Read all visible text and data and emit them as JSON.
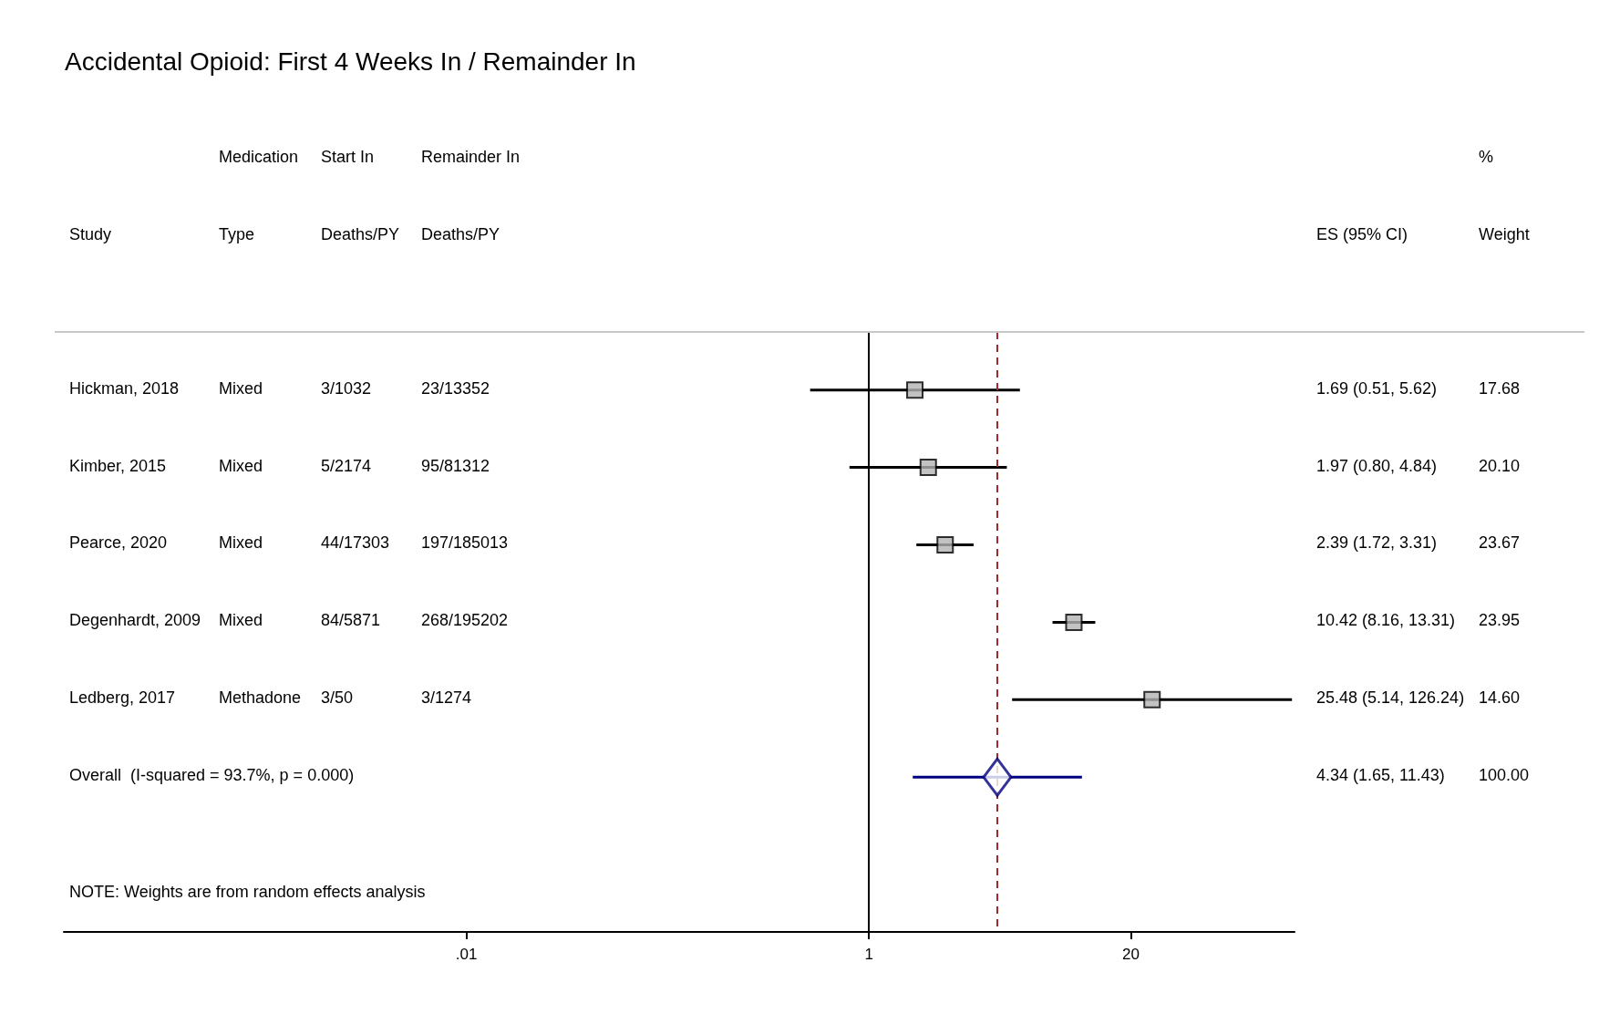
{
  "chart_data": {
    "type": "scatter",
    "title": "Accidental Opioid: First 4 Weeks In / Remainder In",
    "orientation": "horizontal",
    "log": "x",
    "categories": [
      "Hickman, 2018",
      "Kimber, 2015",
      "Pearce, 2020",
      "Degenhardt, 2009",
      "Ledberg, 2017",
      "Overall  (I-squared = 93.7%, p = 0.000)"
    ],
    "series": [
      {
        "color": "#b3b3b3",
        "marker": "square",
        "values": [
          1.69,
          1.97,
          2.39,
          10.42,
          25.48,
          null
        ],
        "errors": [
          [
            0.51,
            5.62
          ],
          [
            0.8,
            4.84
          ],
          [
            1.72,
            3.31
          ],
          [
            8.16,
            13.31
          ],
          [
            5.14,
            126.24
          ],
          null
        ]
      },
      {
        "color": "#000080",
        "marker": "diamond",
        "values": [
          null,
          null,
          null,
          null,
          null,
          4.34
        ],
        "errors": [
          null,
          null,
          null,
          null,
          null,
          [
            1.65,
            11.43
          ]
        ]
      }
    ],
    "xlim": [
      0.0001,
      130
    ],
    "xticks": [
      {
        "value": 0.01,
        "label": ".01"
      },
      1,
      20
    ],
    "ref_lines": [
      {
        "axis": "x",
        "value": 1,
        "color": "#000000",
        "line_style": "solid"
      },
      {
        "axis": "x",
        "value": 4.34,
        "color": "#a0292f",
        "line_style": "dashed"
      }
    ],
    "grid": false,
    "annotations": [
      "Medication",
      "Start In",
      "Remainder In",
      "%",
      "Study",
      "Type",
      "Deaths/PY",
      "Deaths/PY",
      "ES (95% CI)",
      "Weight",
      "Mixed",
      "3/1032",
      "23/13352",
      "1.69 (0.51, 5.62)",
      "17.68",
      "Mixed",
      "5/2174",
      "95/81312",
      "1.97 (0.80, 4.84)",
      "20.10",
      "Mixed",
      "44/17303",
      "197/185013",
      "2.39 (1.72, 3.31)",
      "23.67",
      "Mixed",
      "84/5871",
      "268/195202",
      "10.42 (8.16, 13.31)",
      "23.95",
      "Methadone",
      "3/50",
      "3/1274",
      "25.48 (5.14, 126.24)",
      "14.60",
      "4.34 (1.65, 11.43)",
      "100.00",
      "NOTE: Weights are from random effects analysis"
    ]
  }
}
